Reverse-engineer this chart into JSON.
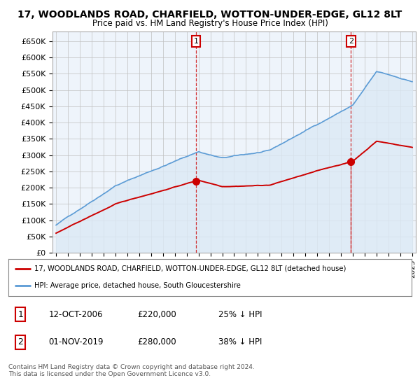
{
  "title": "17, WOODLANDS ROAD, CHARFIELD, WOTTON-UNDER-EDGE, GL12 8LT",
  "subtitle": "Price paid vs. HM Land Registry's House Price Index (HPI)",
  "ylabel_ticks": [
    "£0",
    "£50K",
    "£100K",
    "£150K",
    "£200K",
    "£250K",
    "£300K",
    "£350K",
    "£400K",
    "£450K",
    "£500K",
    "£550K",
    "£600K",
    "£650K"
  ],
  "ylim": [
    0,
    680000
  ],
  "ytick_values": [
    0,
    50000,
    100000,
    150000,
    200000,
    250000,
    300000,
    350000,
    400000,
    450000,
    500000,
    550000,
    600000,
    650000
  ],
  "hpi_color": "#5b9bd5",
  "hpi_fill_color": "#dce9f5",
  "property_color": "#cc0000",
  "t1": 2006.79,
  "t2": 2019.83,
  "price1": 220000,
  "price2": 280000,
  "legend_property": "17, WOODLANDS ROAD, CHARFIELD, WOTTON-UNDER-EDGE, GL12 8LT (detached house)",
  "legend_hpi": "HPI: Average price, detached house, South Gloucestershire",
  "table_row1": [
    "1",
    "12-OCT-2006",
    "£220,000",
    "25% ↓ HPI"
  ],
  "table_row2": [
    "2",
    "01-NOV-2019",
    "£280,000",
    "38% ↓ HPI"
  ],
  "footer": "Contains HM Land Registry data © Crown copyright and database right 2024.\nThis data is licensed under the Open Government Licence v3.0.",
  "background_color": "#ffffff",
  "grid_color": "#c0c0c0"
}
